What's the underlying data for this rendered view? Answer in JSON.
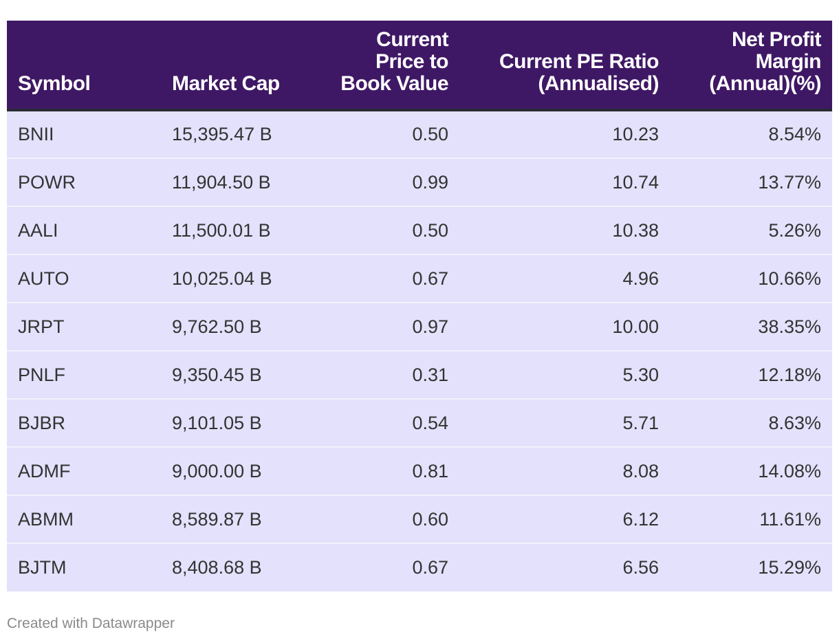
{
  "chart_data": {
    "type": "table",
    "columns": [
      "Symbol",
      "Market Cap",
      "Current Price to Book Value",
      "Current PE Ratio (Annualised)",
      "Net Profit Margin (Annual)(%)"
    ],
    "rows": [
      [
        "BNII",
        "15,395.47 B",
        "0.50",
        "10.23",
        "8.54%"
      ],
      [
        "POWR",
        "11,904.50 B",
        "0.99",
        "10.74",
        "13.77%"
      ],
      [
        "AALI",
        "11,500.01 B",
        "0.50",
        "10.38",
        "5.26%"
      ],
      [
        "AUTO",
        "10,025.04 B",
        "0.67",
        "4.96",
        "10.66%"
      ],
      [
        "JRPT",
        "9,762.50 B",
        "0.97",
        "10.00",
        "38.35%"
      ],
      [
        "PNLF",
        "9,350.45 B",
        "0.31",
        "5.30",
        "12.18%"
      ],
      [
        "BJBR",
        "9,101.05 B",
        "0.54",
        "5.71",
        "8.63%"
      ],
      [
        "ADMF",
        "9,000.00 B",
        "0.81",
        "8.08",
        "14.08%"
      ],
      [
        "ABMM",
        "8,589.87 B",
        "0.60",
        "6.12",
        "11.61%"
      ],
      [
        "BJTM",
        "8,408.68 B",
        "0.67",
        "6.56",
        "15.29%"
      ]
    ]
  },
  "header_lines": [
    [
      "Symbol"
    ],
    [
      "Market Cap"
    ],
    [
      "Current",
      "Price to",
      "Book Value"
    ],
    [
      "Current PE Ratio",
      "(Annualised)"
    ],
    [
      "Net Profit",
      "Margin",
      "(Annual)(%)"
    ]
  ],
  "footer": {
    "credit": "Created with Datawrapper"
  },
  "colors": {
    "header_bg": "#3f1865",
    "row_bg": "#e3e1fb",
    "header_text": "#ffffff"
  }
}
